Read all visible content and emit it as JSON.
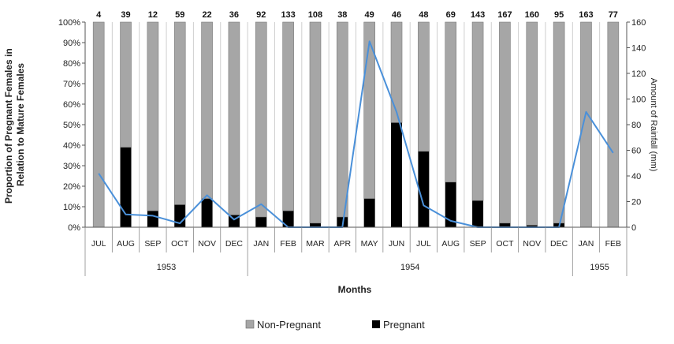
{
  "chart_data": {
    "type": "bar",
    "stacked": true,
    "percent_stacked": true,
    "categories": [
      "JUL",
      "AUG",
      "SEP",
      "OCT",
      "NOV",
      "DEC",
      "JAN",
      "FEB",
      "MAR",
      "APR",
      "MAY",
      "JUN",
      "JUL",
      "AUG",
      "SEP",
      "OCT",
      "NOV",
      "DEC",
      "JAN",
      "FEB"
    ],
    "year_groups": [
      {
        "label": "1953",
        "count": 6
      },
      {
        "label": "1954",
        "count": 12
      },
      {
        "label": "1955",
        "count": 2
      }
    ],
    "sample_counts": [
      "4",
      "39",
      "12",
      "59",
      "22",
      "36",
      "92",
      "133",
      "108",
      "38",
      "49",
      "46",
      "48",
      "69",
      "143",
      "167",
      "160",
      "95",
      "163",
      "77"
    ],
    "series": [
      {
        "name": "Non-Pregnant",
        "color": "#a6a6a6",
        "values": [
          1.0,
          0.61,
          0.92,
          0.89,
          0.86,
          0.94,
          0.95,
          0.92,
          0.98,
          0.95,
          0.86,
          0.49,
          0.63,
          0.78,
          0.87,
          0.98,
          0.99,
          0.98,
          1.0,
          1.0
        ]
      },
      {
        "name": "Pregnant",
        "color": "#000000",
        "values": [
          0.0,
          0.39,
          0.08,
          0.11,
          0.14,
          0.06,
          0.05,
          0.08,
          0.02,
          0.05,
          0.14,
          0.51,
          0.37,
          0.22,
          0.13,
          0.02,
          0.01,
          0.02,
          0.0,
          0.0
        ]
      }
    ],
    "rainfall": {
      "color": "#4a90d9",
      "values": [
        42,
        10,
        9,
        3,
        25,
        6,
        18,
        0,
        0,
        0,
        145,
        90,
        17,
        5,
        0,
        0,
        0,
        0,
        90,
        58
      ]
    },
    "ylabel": "Proportion of Pregnant Females in Relation to Mature Females",
    "y2label": "Amount of Rainfall (mm)",
    "xlabel": "Months",
    "ylim": [
      0,
      1
    ],
    "y2lim": [
      0,
      160
    ],
    "yticks": [
      "0%",
      "10%",
      "20%",
      "30%",
      "40%",
      "50%",
      "60%",
      "70%",
      "80%",
      "90%",
      "100%"
    ],
    "y2ticks": [
      "0",
      "20",
      "40",
      "60",
      "80",
      "100",
      "120",
      "140",
      "160"
    ],
    "legend": {
      "position": "bottom",
      "entries": [
        "Non-Pregnant",
        "Pregnant"
      ]
    }
  }
}
